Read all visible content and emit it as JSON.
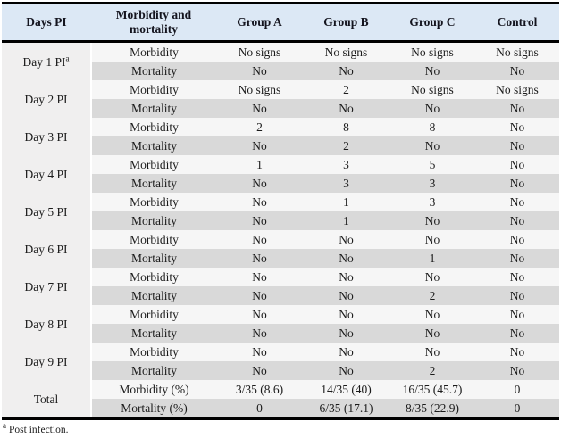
{
  "theme": {
    "header_bg": "#dce8f5",
    "stripe_dark": "#d9d9d9",
    "stripe_light": "#f6f6f6",
    "day_col_bg": "#f0efef",
    "border_color": "#000000",
    "text_color": "#1b1b1b"
  },
  "table": {
    "columns": [
      "Days PI",
      "Morbidity and mortality",
      "Group A",
      "Group B",
      "Group C",
      "Control"
    ],
    "groups": [
      {
        "label": "Day 1 PI",
        "sup": "a",
        "rows": [
          {
            "label": "Morbidity",
            "values": [
              "No signs",
              "No signs",
              "No signs",
              "No signs"
            ]
          },
          {
            "label": "Mortality",
            "values": [
              "No",
              "No",
              "No",
              "No"
            ]
          }
        ]
      },
      {
        "label": "Day 2 PI",
        "rows": [
          {
            "label": "Morbidity",
            "values": [
              "No signs",
              "2",
              "No signs",
              "No signs"
            ]
          },
          {
            "label": "Mortality",
            "values": [
              "No",
              "No",
              "No",
              "No"
            ]
          }
        ]
      },
      {
        "label": "Day 3 PI",
        "rows": [
          {
            "label": "Morbidity",
            "values": [
              "2",
              "8",
              "8",
              "No"
            ]
          },
          {
            "label": "Mortality",
            "values": [
              "No",
              "2",
              "No",
              "No"
            ]
          }
        ]
      },
      {
        "label": "Day 4 PI",
        "rows": [
          {
            "label": "Morbidity",
            "values": [
              "1",
              "3",
              "5",
              "No"
            ]
          },
          {
            "label": "Mortality",
            "values": [
              "No",
              "3",
              "3",
              "No"
            ]
          }
        ]
      },
      {
        "label": "Day 5 PI",
        "rows": [
          {
            "label": "Morbidity",
            "values": [
              "No",
              "1",
              "3",
              "No"
            ]
          },
          {
            "label": "Mortality",
            "values": [
              "No",
              "1",
              "No",
              "No"
            ]
          }
        ]
      },
      {
        "label": "Day 6 PI",
        "rows": [
          {
            "label": "Morbidity",
            "values": [
              "No",
              "No",
              "No",
              "No"
            ]
          },
          {
            "label": "Mortality",
            "values": [
              "No",
              "No",
              "1",
              "No"
            ]
          }
        ]
      },
      {
        "label": "Day 7 PI",
        "rows": [
          {
            "label": "Morbidity",
            "values": [
              "No",
              "No",
              "No",
              "No"
            ]
          },
          {
            "label": "Mortality",
            "values": [
              "No",
              "No",
              "2",
              "No"
            ]
          }
        ]
      },
      {
        "label": "Day 8 PI",
        "rows": [
          {
            "label": "Morbidity",
            "values": [
              "No",
              "No",
              "No",
              "No"
            ]
          },
          {
            "label": "Mortality",
            "values": [
              "No",
              "No",
              "No",
              "No"
            ]
          }
        ]
      },
      {
        "label": "Day 9 PI",
        "rows": [
          {
            "label": "Morbidity",
            "values": [
              "No",
              "No",
              "No",
              "No"
            ]
          },
          {
            "label": "Mortality",
            "values": [
              "No",
              "No",
              "2",
              "No"
            ]
          }
        ]
      },
      {
        "label": "Total",
        "rows": [
          {
            "label": "Morbidity (%)",
            "values": [
              "3/35 (8.6)",
              "14/35 (40)",
              "16/35 (45.7)",
              "0"
            ]
          },
          {
            "label": "Mortality (%)",
            "values": [
              "0",
              "6/35 (17.1)",
              "8/35 (22.9)",
              "0"
            ]
          }
        ]
      }
    ]
  },
  "footnote": {
    "marker": "a",
    "text": "Post infection."
  }
}
